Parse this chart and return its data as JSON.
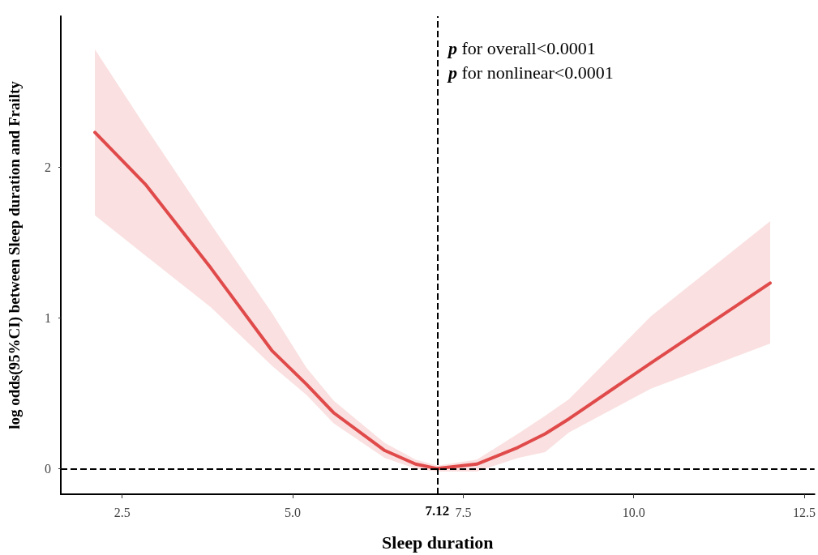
{
  "chart_data": {
    "type": "line",
    "xlabel": "Sleep duration",
    "ylabel": "log odds(95%CI) between Sleep duration and Frailty",
    "x": [
      2.1,
      2.85,
      3.8,
      4.7,
      5.2,
      5.6,
      6.35,
      6.8,
      7.12,
      7.7,
      8.3,
      8.7,
      9.05,
      10.25,
      12.0
    ],
    "series": [
      {
        "color": "#e04a4a",
        "values": [
          2.23,
          1.88,
          1.33,
          0.78,
          0.56,
          0.37,
          0.12,
          0.03,
          0,
          0.03,
          0.14,
          0.23,
          0.33,
          0.7,
          1.23
        ],
        "upper": [
          2.78,
          2.26,
          1.62,
          1.03,
          0.67,
          0.45,
          0.17,
          0.06,
          0.02,
          0.06,
          0.23,
          0.35,
          0.46,
          1.01,
          1.64
        ],
        "lower": [
          1.68,
          1.41,
          1.07,
          0.68,
          0.49,
          0.3,
          0.07,
          0.0,
          -0.02,
          -0.02,
          0.07,
          0.11,
          0.24,
          0.53,
          0.83
        ]
      }
    ],
    "xlim": [
      1.6,
      12.65
    ],
    "xticks": [
      2.5,
      {
        "value": 5,
        "label": "5.0"
      },
      7.5,
      {
        "value": 10,
        "label": "10.0"
      },
      12.5
    ],
    "ylim": [
      -0.17,
      3.0
    ],
    "yticks": [
      0,
      1,
      2
    ],
    "ref_lines": [
      {
        "axis": "x",
        "value": 7.12,
        "label": "7.12",
        "line_style": "dashed"
      },
      {
        "axis": "y",
        "value": 0,
        "line_style": "dashed"
      }
    ],
    "annotations": [
      "p for overall<0.0001",
      "p for nonlinear<0.0001"
    ],
    "grid": false,
    "marker": "none",
    "line_style": "solid"
  }
}
